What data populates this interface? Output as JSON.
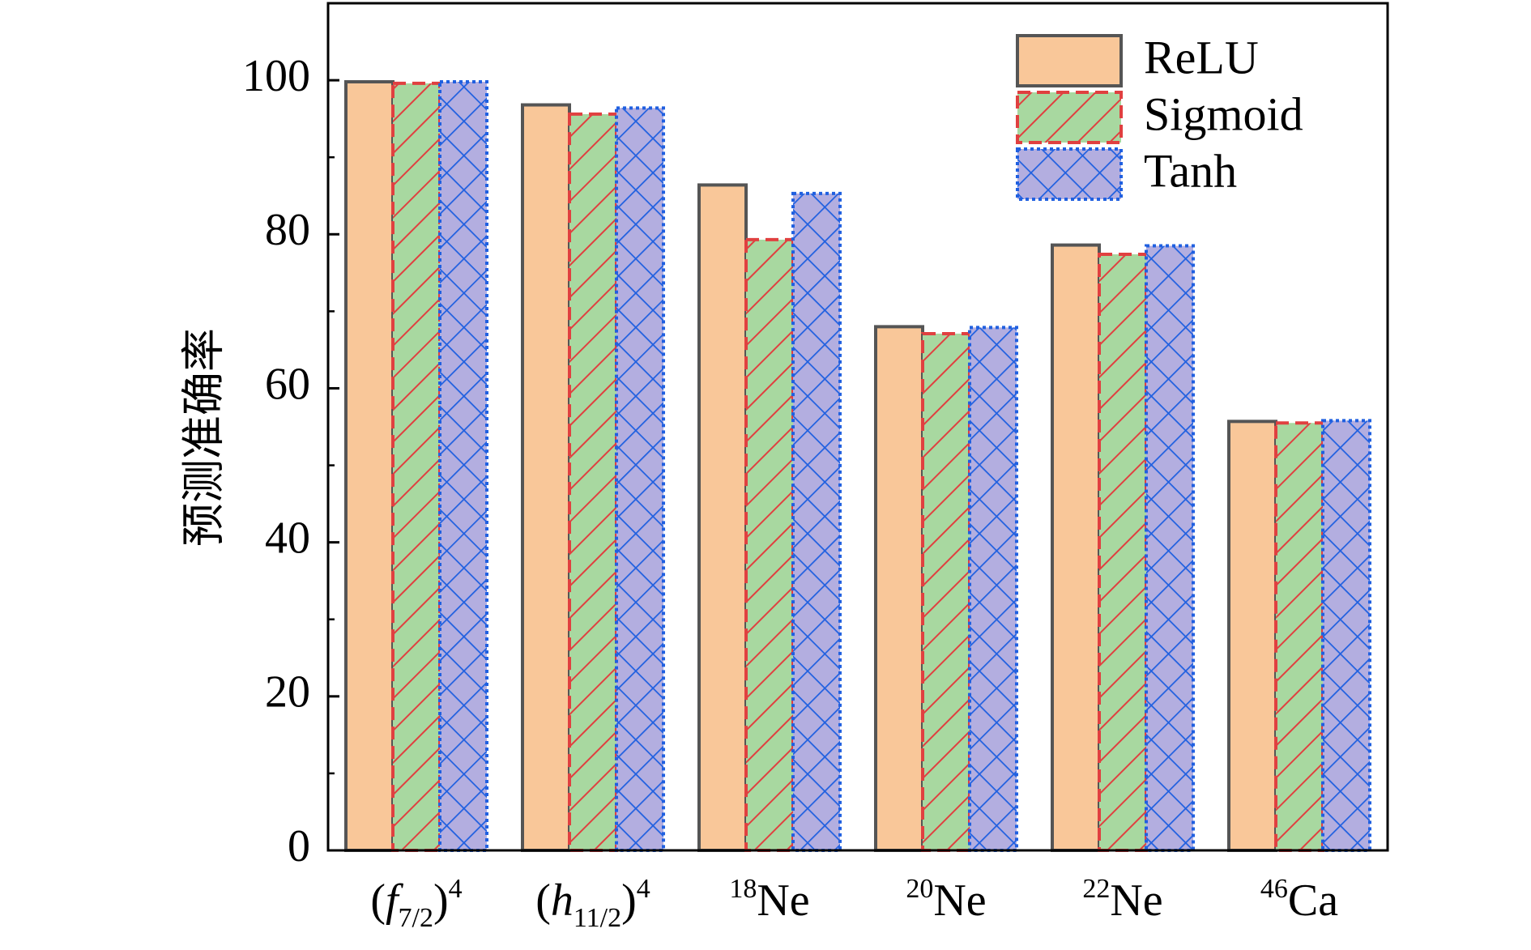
{
  "chart_data": {
    "type": "bar",
    "title": "",
    "xlabel": "",
    "ylabel": "预测准确率",
    "ylim": [
      0,
      110
    ],
    "yticks": [
      0,
      20,
      40,
      60,
      80,
      100
    ],
    "grid": false,
    "legend_position": "top-right",
    "categories": [
      {
        "base": "(f",
        "sub": "7/2",
        "tail": ")",
        "sup": "4",
        "italic": true
      },
      {
        "base": "(h",
        "sub": "11/2",
        "tail": ")",
        "sup": "4",
        "italic": true
      },
      {
        "pre_sup": "18",
        "base": "Ne"
      },
      {
        "pre_sup": "20",
        "base": "Ne"
      },
      {
        "pre_sup": "22",
        "base": "Ne"
      },
      {
        "pre_sup": "46",
        "base": "Ca"
      }
    ],
    "series": [
      {
        "name": "ReLU",
        "values": [
          99.8,
          96.8,
          86.4,
          68.0,
          78.6,
          55.7
        ],
        "fill": "#f9c799",
        "stroke": "#555555",
        "pattern": "none"
      },
      {
        "name": "Sigmoid",
        "values": [
          99.6,
          95.6,
          79.3,
          67.1,
          77.4,
          55.5
        ],
        "fill": "#a8d8a0",
        "stroke": "#e04040",
        "pattern": "diagonal"
      },
      {
        "name": "Tanh",
        "values": [
          99.8,
          96.4,
          85.3,
          67.9,
          78.5,
          55.8
        ],
        "fill": "#b3aee0",
        "stroke": "#2060e0",
        "pattern": "crosshatch"
      }
    ]
  }
}
